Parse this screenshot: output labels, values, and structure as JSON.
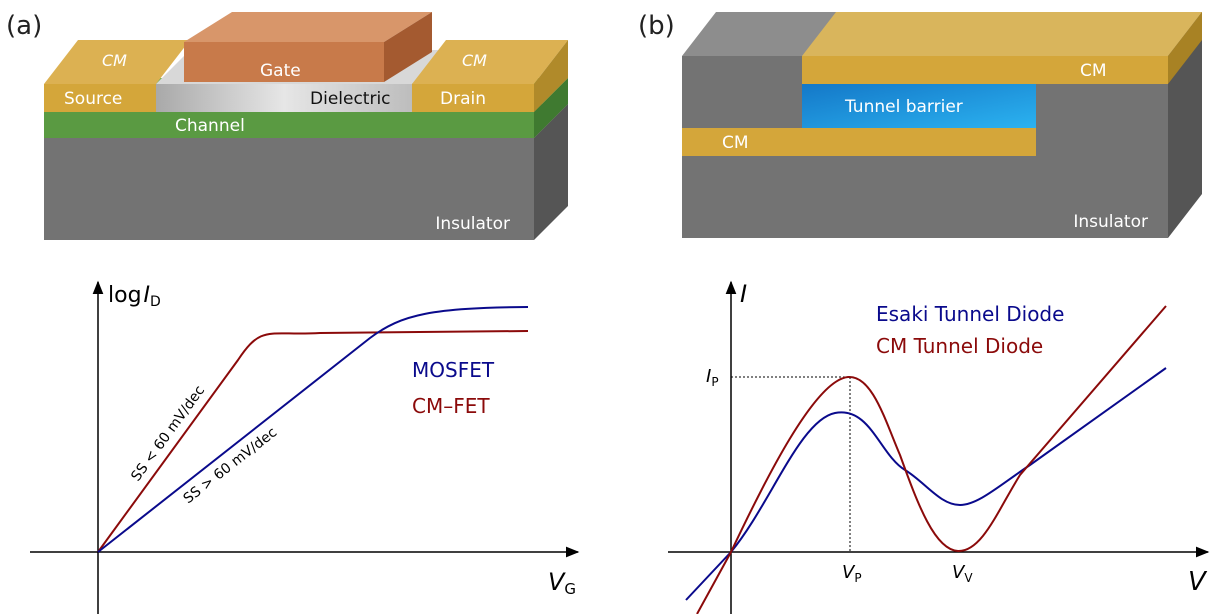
{
  "panel_a": {
    "label": "(a)",
    "device": {
      "cm_left": "CM",
      "cm_right": "CM",
      "gate": "Gate",
      "source": "Source",
      "dielectric": "Dielectric",
      "drain": "Drain",
      "channel": "Channel",
      "insulator": "Insulator"
    },
    "plot": {
      "ylabel_prefix": "log",
      "ylabel_var": "I",
      "ylabel_sub": "D",
      "xlabel_var": "V",
      "xlabel_sub": "G",
      "legend": [
        {
          "name": "MOSFET",
          "color": "#0a0a8c"
        },
        {
          "name": "CM–FET",
          "color": "#8b0a0a"
        }
      ],
      "annotation_cm": "SS < 60 mV/dec",
      "annotation_mos": "SS > 60 mV/dec"
    }
  },
  "panel_b": {
    "label": "(b)",
    "device": {
      "cm_top": "CM",
      "tunnel_barrier": "Tunnel barrier",
      "cm_bottom": "CM",
      "insulator": "Insulator"
    },
    "plot": {
      "ylabel_var": "I",
      "xlabel_var": "V",
      "ip_var": "I",
      "ip_sub": "P",
      "vp_var": "V",
      "vp_sub": "P",
      "vv_var": "V",
      "vv_sub": "V",
      "legend": [
        {
          "name": "Esaki Tunnel Diode",
          "color": "#0a0a8c"
        },
        {
          "name": "CM Tunnel Diode",
          "color": "#8b0a0a"
        }
      ]
    }
  },
  "colors": {
    "gold": "#d4a63a",
    "copper": "#c87a4a",
    "green": "#5a9a42",
    "gray": "#6f6f6f",
    "blue_barrier": "#1e8fd8",
    "blue_curve": "#0a0a8c",
    "red_curve": "#8b0a0a"
  }
}
